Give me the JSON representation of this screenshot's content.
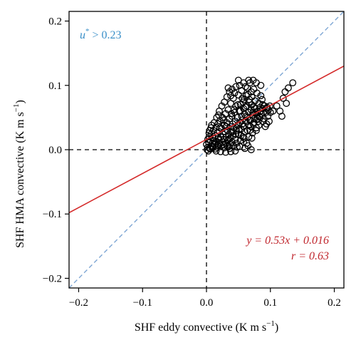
{
  "chart_data": {
    "type": "scatter",
    "xlabel_main": "SHF eddy convective (K m s",
    "xlabel_sup": "−1",
    "xlabel_end": ")",
    "ylabel_main": "SHF HMA convective (K m s",
    "ylabel_sup": "−1",
    "ylabel_end": ")",
    "xlim": [
      -0.215,
      0.215
    ],
    "ylim": [
      -0.215,
      0.215
    ],
    "x_ticks": [
      -0.2,
      -0.1,
      0.0,
      0.1,
      0.2
    ],
    "x_tick_labels": [
      "−0.2",
      "−0.1",
      "0.0",
      "0.1",
      "0.2"
    ],
    "y_ticks": [
      -0.2,
      -0.1,
      0.0,
      0.1,
      0.2
    ],
    "y_tick_labels": [
      "−0.2",
      "−0.1",
      "0.0",
      "0.1",
      "0.2"
    ],
    "filter_annotation": {
      "var": "u",
      "sup": "*",
      "rest": " > 0.23",
      "color": "#3a8fc8"
    },
    "fit_annotation": {
      "eq": "y = 0.53x + 0.016",
      "r": "r = 0.63",
      "color": "#c0262d"
    },
    "fit_line": {
      "slope": 0.53,
      "intercept": 0.016,
      "color": "#d42a2a"
    },
    "one_to_one_line": {
      "slope": 1,
      "intercept": 0,
      "color": "#7ea6d4"
    },
    "zero_lines_color": "#000000",
    "marker_color": "#000000",
    "series": [
      {
        "points": [
          [
            0.0,
            0.008
          ],
          [
            0.002,
            0.004
          ],
          [
            0.003,
            0.012
          ],
          [
            0.004,
            0.02
          ],
          [
            0.005,
            0.002
          ],
          [
            0.006,
            0.015
          ],
          [
            0.007,
            0.006
          ],
          [
            0.008,
            0.025
          ],
          [
            0.009,
            0.01
          ],
          [
            0.01,
            0.018
          ],
          [
            0.01,
            0.005
          ],
          [
            0.011,
            0.03
          ],
          [
            0.012,
            0.014
          ],
          [
            0.013,
            0.008
          ],
          [
            0.014,
            0.022
          ],
          [
            0.015,
            0.035
          ],
          [
            0.015,
            0.012
          ],
          [
            0.016,
            0.004
          ],
          [
            0.017,
            0.026
          ],
          [
            0.018,
            0.017
          ],
          [
            0.018,
            0.04
          ],
          [
            0.019,
            0.009
          ],
          [
            0.02,
            0.028
          ],
          [
            0.02,
            0.015
          ],
          [
            0.021,
            0.045
          ],
          [
            0.022,
            0.02
          ],
          [
            0.023,
            0.006
          ],
          [
            0.024,
            0.033
          ],
          [
            0.025,
            0.012
          ],
          [
            0.025,
            0.05
          ],
          [
            0.026,
            0.024
          ],
          [
            0.027,
            0.016
          ],
          [
            0.028,
            0.038
          ],
          [
            0.028,
            0.003
          ],
          [
            0.029,
            0.028
          ],
          [
            0.03,
            0.056
          ],
          [
            0.03,
            0.01
          ],
          [
            0.031,
            0.02
          ],
          [
            0.032,
            0.042
          ],
          [
            0.033,
            0.014
          ],
          [
            0.033,
            0.03
          ],
          [
            0.034,
            0.062
          ],
          [
            0.035,
            0.005
          ],
          [
            0.035,
            0.024
          ],
          [
            0.036,
            0.048
          ],
          [
            0.037,
            0.018
          ],
          [
            0.038,
            0.036
          ],
          [
            0.038,
            0.072
          ],
          [
            0.039,
            0.028
          ],
          [
            0.04,
            0.012
          ],
          [
            0.04,
            0.052
          ],
          [
            0.041,
            0.04
          ],
          [
            0.042,
            0.022
          ],
          [
            0.042,
            0.08
          ],
          [
            0.043,
            0.034
          ],
          [
            0.044,
            0.058
          ],
          [
            0.045,
            0.016
          ],
          [
            0.045,
            0.044
          ],
          [
            0.046,
            0.068
          ],
          [
            0.047,
            0.03
          ],
          [
            0.048,
            0.004
          ],
          [
            0.048,
            0.05
          ],
          [
            0.049,
            0.038
          ],
          [
            0.05,
            0.085
          ],
          [
            0.05,
            0.024
          ],
          [
            0.051,
            0.06
          ],
          [
            0.052,
            0.042
          ],
          [
            0.053,
            0.014
          ],
          [
            0.053,
            0.07
          ],
          [
            0.054,
            0.032
          ],
          [
            0.055,
            0.052
          ],
          [
            0.055,
            0.092
          ],
          [
            0.056,
            0.046
          ],
          [
            0.057,
            0.02
          ],
          [
            0.058,
            0.064
          ],
          [
            0.058,
            0.036
          ],
          [
            0.059,
            0.078
          ],
          [
            0.06,
            0.055
          ],
          [
            0.06,
            0.028
          ],
          [
            0.061,
            0.098
          ],
          [
            0.062,
            0.044
          ],
          [
            0.063,
            0.068
          ],
          [
            0.063,
            0.01
          ],
          [
            0.064,
            0.05
          ],
          [
            0.065,
            0.086
          ],
          [
            0.066,
            0.038
          ],
          [
            0.066,
            0.058
          ],
          [
            0.067,
            0.074
          ],
          [
            0.068,
            0.03
          ],
          [
            0.068,
            0.104
          ],
          [
            0.069,
            0.046
          ],
          [
            0.07,
            0.062
          ],
          [
            0.071,
            0.082
          ],
          [
            0.071,
            0.018
          ],
          [
            0.072,
            0.054
          ],
          [
            0.073,
            0.04
          ],
          [
            0.074,
            0.094
          ],
          [
            0.074,
            0.066
          ],
          [
            0.075,
            0.048
          ],
          [
            0.076,
            0.076
          ],
          [
            0.077,
            0.058
          ],
          [
            0.078,
            0.034
          ],
          [
            0.079,
            0.088
          ],
          [
            0.08,
            0.06
          ],
          [
            0.081,
            0.044
          ],
          [
            0.082,
            0.072
          ],
          [
            0.083,
            0.052
          ],
          [
            0.084,
            0.066
          ],
          [
            0.085,
            0.084
          ],
          [
            0.086,
            0.056
          ],
          [
            0.088,
            0.064
          ],
          [
            0.09,
            0.048
          ],
          [
            0.091,
            0.068
          ],
          [
            0.093,
            0.058
          ],
          [
            0.095,
            0.066
          ],
          [
            0.097,
            0.062
          ],
          [
            0.085,
            0.1
          ],
          [
            0.066,
            0.108
          ],
          [
            0.073,
            0.108
          ],
          [
            0.078,
            0.104
          ],
          [
            0.005,
            0.03
          ],
          [
            0.008,
            0.038
          ],
          [
            0.012,
            0.042
          ],
          [
            0.02,
            0.06
          ],
          [
            0.024,
            0.068
          ],
          [
            0.028,
            0.074
          ],
          [
            0.032,
            0.082
          ],
          [
            0.036,
            0.09
          ],
          [
            0.04,
            0.094
          ],
          [
            0.046,
            0.098
          ],
          [
            0.052,
            0.1
          ],
          [
            0.058,
            0.104
          ],
          [
            0.064,
            0.096
          ],
          [
            0.07,
            0.09
          ],
          [
            0.044,
            0.088
          ],
          [
            0.038,
            0.084
          ],
          [
            0.034,
            0.096
          ],
          [
            0.05,
            0.108
          ],
          [
            0.056,
            0.08
          ],
          [
            0.062,
            0.084
          ],
          [
            0.015,
            -0.002
          ],
          [
            0.022,
            -0.003
          ],
          [
            0.03,
            -0.004
          ],
          [
            0.038,
            -0.003
          ],
          [
            0.045,
            -0.002
          ],
          [
            0.06,
            0.002
          ],
          [
            0.065,
            0.006
          ],
          [
            0.07,
            0.0
          ],
          [
            0.052,
            0.005
          ],
          [
            0.058,
            0.012
          ],
          [
            0.066,
            0.02
          ],
          [
            0.072,
            0.026
          ],
          [
            0.078,
            0.03
          ],
          [
            0.082,
            0.038
          ],
          [
            0.088,
            0.044
          ],
          [
            0.092,
            0.036
          ],
          [
            0.096,
            0.052
          ],
          [
            0.1,
            0.058
          ],
          [
            0.098,
            0.044
          ],
          [
            0.094,
            0.04
          ],
          [
            0.11,
            0.068
          ],
          [
            0.115,
            0.06
          ],
          [
            0.118,
            0.052
          ],
          [
            0.12,
            0.08
          ],
          [
            0.123,
            0.09
          ],
          [
            0.125,
            0.072
          ],
          [
            0.128,
            0.096
          ],
          [
            0.135,
            0.104
          ],
          [
            0.088,
            0.07
          ],
          [
            0.087,
            0.078
          ],
          [
            0.001,
            0.0
          ],
          [
            0.003,
            -0.002
          ],
          [
            0.006,
            0.001
          ],
          [
            0.01,
            0.003
          ],
          [
            0.014,
            0.001
          ],
          [
            0.018,
            0.006
          ],
          [
            0.002,
            0.016
          ],
          [
            0.004,
            0.026
          ],
          [
            0.007,
            0.034
          ],
          [
            0.026,
            0.008
          ],
          [
            0.032,
            0.006
          ],
          [
            0.036,
            0.002
          ],
          [
            0.042,
            0.006
          ],
          [
            0.047,
            0.01
          ],
          [
            0.054,
            0.022
          ],
          [
            0.059,
            0.018
          ],
          [
            0.064,
            0.03
          ],
          [
            0.069,
            0.036
          ],
          [
            0.074,
            0.042
          ],
          [
            0.08,
            0.048
          ],
          [
            0.084,
            0.05
          ],
          [
            0.076,
            0.064
          ],
          [
            0.071,
            0.07
          ],
          [
            0.067,
            0.078
          ],
          [
            0.061,
            0.066
          ],
          [
            0.057,
            0.074
          ],
          [
            0.053,
            0.06
          ],
          [
            0.049,
            0.07
          ],
          [
            0.043,
            0.062
          ],
          [
            0.039,
            0.056
          ],
          [
            0.016,
            0.05
          ],
          [
            0.019,
            0.054
          ],
          [
            0.021,
            0.034
          ],
          [
            0.027,
            0.046
          ],
          [
            0.031,
            0.036
          ],
          [
            0.034,
            0.016
          ],
          [
            0.037,
            0.008
          ],
          [
            0.041,
            0.028
          ],
          [
            0.046,
            0.024
          ],
          [
            0.051,
            0.032
          ],
          [
            0.056,
            0.04
          ],
          [
            0.062,
            0.052
          ],
          [
            0.068,
            0.046
          ],
          [
            0.073,
            0.058
          ],
          [
            0.079,
            0.054
          ],
          [
            0.084,
            0.06
          ],
          [
            0.089,
            0.058
          ],
          [
            0.094,
            0.064
          ],
          [
            0.099,
            0.068
          ],
          [
            0.104,
            0.06
          ]
        ]
      }
    ]
  }
}
